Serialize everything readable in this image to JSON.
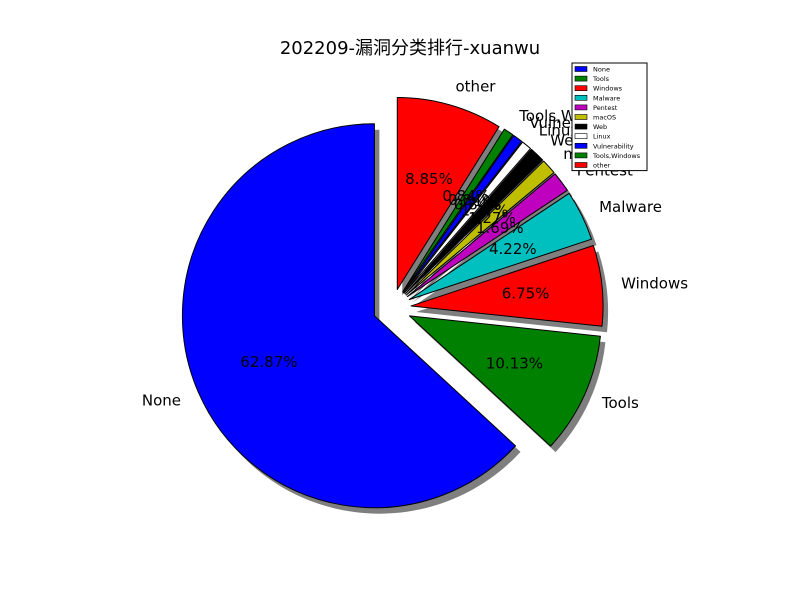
{
  "chart_data": {
    "type": "pie",
    "title": "202209-漏洞分类排行-xuanwu",
    "categories": [
      "None",
      "Tools",
      "Windows",
      "Malware",
      "Pentest",
      "macOS",
      "Web",
      "Linux",
      "Vulnerability",
      "Tools,Windows",
      "other"
    ],
    "values": [
      62.87,
      10.13,
      6.75,
      4.22,
      1.69,
      1.27,
      1.27,
      0.84,
      0.84,
      0.84,
      8.85
    ],
    "value_labels": [
      "62.87%",
      "10.13%",
      "6.75%",
      "4.22%",
      "1.69%",
      "1.27%",
      "1.27%",
      "0.84%",
      "0.84%",
      "0.84%",
      "8.85%"
    ],
    "colors": [
      "#0000ff",
      "#008000",
      "#ff0000",
      "#00bfbf",
      "#bf00bf",
      "#bfbf00",
      "#000000",
      "#ffffff",
      "#0000ff",
      "#008000",
      "#ff0000"
    ],
    "start_angle_deg": 90,
    "direction": "counterclockwise",
    "shadow": true,
    "legend": "top-right"
  }
}
